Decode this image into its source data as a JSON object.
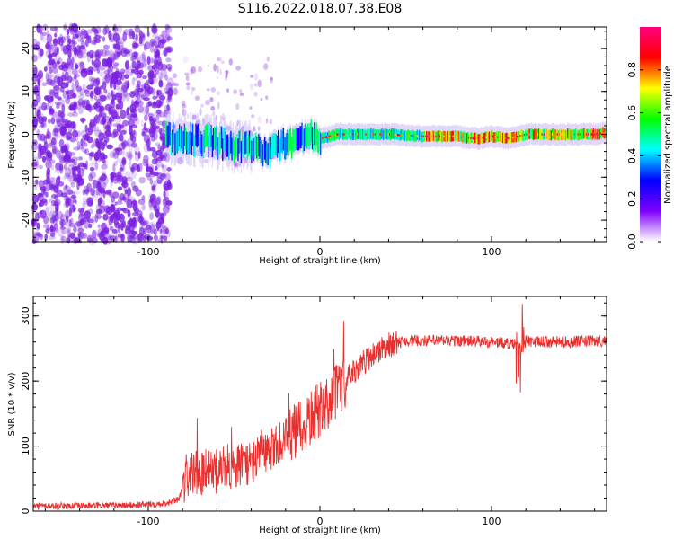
{
  "title": "S116.2022.018.07.38.E08",
  "colors": {
    "snr_line": "#e8302f",
    "blob": "#7a1fe0",
    "frame": "#000000"
  },
  "chart_data": [
    {
      "type": "heatmap",
      "name": "spectrogram",
      "xlabel": "Height of straight line (km)",
      "ylabel": "Frequency (Hz)",
      "xlim": [
        -167,
        167
      ],
      "ylim": [
        -25,
        25
      ],
      "xticks": [
        -100,
        0,
        100
      ],
      "yticks": [
        -20,
        -10,
        0,
        10,
        20
      ],
      "track": {
        "x": [
          -90,
          -80,
          -70,
          -60,
          -50,
          -40,
          -35,
          -30,
          -25,
          -20,
          -10,
          -5,
          0,
          10,
          20,
          40,
          60,
          80,
          90,
          100,
          110,
          120,
          140,
          160,
          167
        ],
        "freq": [
          -1,
          -1,
          -1.5,
          -2,
          -3,
          -3,
          -4,
          -4,
          -3,
          -2,
          -1,
          -0.5,
          -1,
          0,
          0,
          0,
          -0.5,
          -0.5,
          -1,
          -0.5,
          -1,
          0,
          0,
          0,
          0.5
        ]
      },
      "colorbar": {
        "label": "Normalized spectral amplitude",
        "ticks": [
          "0.0",
          "0.2",
          "0.4",
          "0.6",
          "0.8"
        ],
        "tick_values": [
          0.0,
          0.2,
          0.4,
          0.6,
          0.8
        ],
        "range": [
          0,
          1
        ],
        "colormap": [
          "#ffffff",
          "#7f00ff",
          "#0000ff",
          "#00ffff",
          "#00ff00",
          "#ffff00",
          "#ff0000",
          "#ff0080"
        ]
      }
    },
    {
      "type": "line",
      "name": "snr",
      "xlabel": "Height of straight line (km)",
      "ylabel": "SNR (10 * v/v)",
      "xlim": [
        -167,
        167
      ],
      "ylim": [
        0,
        330
      ],
      "xticks": [
        -100,
        0,
        100
      ],
      "yticks": [
        0,
        100,
        200,
        300
      ],
      "series": [
        {
          "name": "SNR",
          "x": [
            -167,
            -140,
            -110,
            -90,
            -82,
            -78,
            -70,
            -60,
            -50,
            -40,
            -30,
            -20,
            -10,
            0,
            10,
            20,
            30,
            40,
            50,
            60,
            80,
            100,
            110,
            115,
            118,
            120,
            125,
            140,
            167
          ],
          "y": [
            8,
            8,
            9,
            12,
            18,
            55,
            60,
            62,
            70,
            75,
            90,
            110,
            130,
            155,
            185,
            215,
            240,
            255,
            262,
            262,
            262,
            260,
            258,
            255,
            250,
            262,
            260,
            260,
            262
          ]
        }
      ]
    }
  ]
}
